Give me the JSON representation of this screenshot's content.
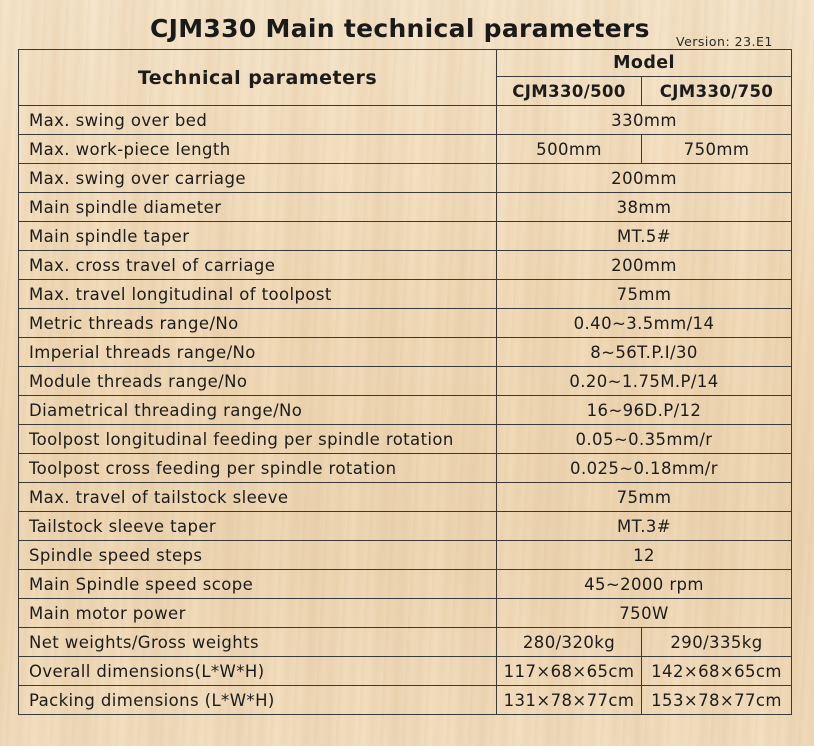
{
  "title": "CJM330 Main technical parameters",
  "version": "Version: 23.E1",
  "header": {
    "technical_parameters": "Technical parameters",
    "model": "Model",
    "model_a": "CJM330/500",
    "model_b": "CJM330/750"
  },
  "rows": [
    {
      "name": "Max. swing over bed",
      "value": "330mm"
    },
    {
      "name": "Max. work-piece length",
      "a": "500mm",
      "b": "750mm"
    },
    {
      "name": "Max. swing over carriage",
      "value": "200mm"
    },
    {
      "name": "Main spindle diameter",
      "value": "38mm"
    },
    {
      "name": "Main spindle taper",
      "value": "MT.5#"
    },
    {
      "name": "Max. cross travel of carriage",
      "value": "200mm"
    },
    {
      "name": "Max. travel longitudinal of toolpost",
      "value": "75mm"
    },
    {
      "name": "Metric threads range/No",
      "value": "0.40~3.5mm/14"
    },
    {
      "name": "Imperial threads range/No",
      "value": "8~56T.P.I/30"
    },
    {
      "name": "Module threads range/No",
      "value": "0.20~1.75M.P/14"
    },
    {
      "name": "Diametrical threading range/No",
      "value": "16~96D.P/12"
    },
    {
      "name": "Toolpost longitudinal feeding per spindle rotation",
      "value": "0.05~0.35mm/r"
    },
    {
      "name": "Toolpost cross feeding per spindle rotation",
      "value": "0.025~0.18mm/r"
    },
    {
      "name": "Max. travel of tailstock sleeve",
      "value": "75mm"
    },
    {
      "name": "Tailstock sleeve taper",
      "value": "MT.3#"
    },
    {
      "name": "Spindle speed steps",
      "value": "12"
    },
    {
      "name": "Main Spindle speed scope",
      "value": "45~2000 rpm"
    },
    {
      "name": "Main motor power",
      "value": "750W"
    },
    {
      "name": "Net weights/Gross weights",
      "a": "280/320kg",
      "b": "290/335kg"
    },
    {
      "name": "Overall dimensions(L*W*H)",
      "a": "117×68×65cm",
      "b": "142×68×65cm"
    },
    {
      "name": "Packing dimensions (L*W*H)",
      "a": "131×78×77cm",
      "b": "153×78×77cm"
    }
  ]
}
